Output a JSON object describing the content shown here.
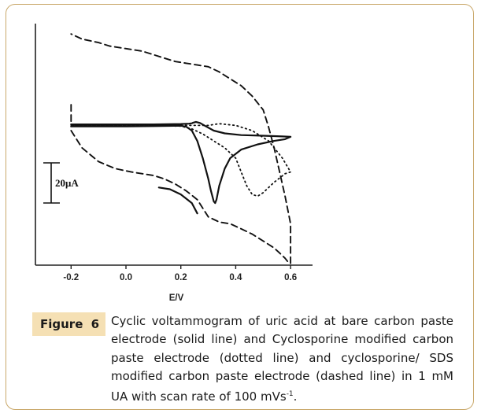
{
  "figure": {
    "label_word": "Figure",
    "label_number": "6",
    "caption_main": "Cyclic voltammogram of uric acid at bare carbon paste electrode (solid line) and Cyclosporine modified carbon paste electrode (dotted line) and cyclosporine/ SDS modified carbon paste electrode (dashed line) in 1 mM UA with scan rate of 100 mVs",
    "caption_sup": "-1",
    "caption_end": "."
  },
  "chart_data": {
    "type": "line",
    "xlabel": "E/V",
    "ylabel": "",
    "x_ticks": [
      "-0.2",
      "0.0",
      "0.2",
      "0.4",
      "0.6"
    ],
    "x_tick_values": [
      -0.2,
      0.0,
      0.2,
      0.4,
      0.6
    ],
    "xlim": [
      -0.33,
      0.68
    ],
    "ylim": [
      -40,
      30
    ],
    "scale_bar": {
      "label": "20μA",
      "value": 20
    },
    "grid": false,
    "legend": "none",
    "series": [
      {
        "style": "solid",
        "color": "#111111",
        "x": [
          -0.2,
          -0.1,
          0.0,
          0.1,
          0.2,
          0.22,
          0.24,
          0.26,
          0.28,
          0.3,
          0.31,
          0.32,
          0.325,
          0.33,
          0.34,
          0.36,
          0.38,
          0.42,
          0.48,
          0.54,
          0.58,
          0.6,
          0.57,
          0.5,
          0.42,
          0.36,
          0.32,
          0.29,
          0.27,
          0.255,
          0.245,
          0.24,
          0.23,
          0.2,
          0.1,
          0.0,
          -0.1,
          -0.2
        ],
        "y": [
          0.2,
          0.2,
          0.2,
          0.3,
          0.4,
          0.1,
          -1.0,
          -4.0,
          -9.0,
          -15.0,
          -18.5,
          -21.5,
          -22.0,
          -21.0,
          -17.0,
          -12.0,
          -9.0,
          -6.5,
          -5.0,
          -4.0,
          -3.5,
          -2.8,
          -2.7,
          -2.5,
          -2.3,
          -1.8,
          -1.0,
          0.3,
          1.2,
          1.5,
          1.3,
          1.1,
          1.0,
          0.9,
          0.8,
          0.8,
          0.8,
          0.8
        ]
      },
      {
        "style": "solid",
        "color": "#111111",
        "x": [
          0.12,
          0.16,
          0.2,
          0.24,
          0.26
        ],
        "y": [
          -17.5,
          -18.0,
          -19.5,
          -22.0,
          -25.0
        ]
      },
      {
        "style": "dotted",
        "color": "#111111",
        "x": [
          -0.2,
          -0.1,
          0.0,
          0.1,
          0.2,
          0.24,
          0.28,
          0.32,
          0.36,
          0.4,
          0.42,
          0.44,
          0.46,
          0.48,
          0.5,
          0.54,
          0.58,
          0.6,
          0.57,
          0.52,
          0.46,
          0.4,
          0.34,
          0.3,
          0.27,
          0.25,
          0.22,
          0.1,
          0.0,
          -0.2
        ],
        "y": [
          0.5,
          0.5,
          0.4,
          0.4,
          0.3,
          -0.5,
          -2.0,
          -4.0,
          -6.0,
          -9.0,
          -13.0,
          -17.0,
          -19.5,
          -20.0,
          -19.0,
          -16.0,
          -13.5,
          -13.0,
          -9.0,
          -4.0,
          -1.0,
          0.5,
          1.0,
          0.5,
          0.5,
          0.5,
          0.5,
          0.5,
          0.5,
          0.5
        ]
      },
      {
        "style": "dashed",
        "color": "#111111",
        "x": [
          -0.2,
          -0.16,
          -0.1,
          -0.04,
          0.02,
          0.06,
          0.1,
          0.14,
          0.18,
          0.22,
          0.26,
          0.3,
          0.34,
          0.38,
          0.42,
          0.46,
          0.5,
          0.54,
          0.56,
          0.58,
          0.59,
          0.6,
          0.6,
          0.58,
          0.56,
          0.54,
          0.52,
          0.5,
          0.46,
          0.42,
          0.38,
          0.34,
          0.3,
          0.26,
          0.22,
          0.18,
          0.14,
          0.1,
          0.06,
          0.02,
          -0.02,
          -0.06,
          -0.1,
          -0.16,
          -0.2
        ],
        "y": [
          -1.0,
          -6.0,
          -10.0,
          -12.0,
          -13.0,
          -13.5,
          -14.0,
          -15.0,
          -16.5,
          -18.5,
          -21.0,
          -26.0,
          -27.5,
          -28.0,
          -29.5,
          -31.0,
          -33.0,
          -35.0,
          -36.5,
          -38.0,
          -39.0,
          -39.5,
          -28.0,
          -20.0,
          -13.0,
          -6.0,
          0.0,
          5.0,
          9.0,
          12.0,
          14.0,
          16.0,
          17.5,
          18.0,
          18.5,
          19.0,
          20.0,
          21.0,
          22.0,
          22.5,
          23.0,
          23.5,
          24.5,
          25.5,
          27.0
        ]
      },
      {
        "style": "dashed",
        "color": "#111111",
        "x": [
          -0.2,
          -0.2,
          -0.2
        ],
        "y": [
          6.5,
          4.0,
          1.0
        ]
      }
    ]
  }
}
